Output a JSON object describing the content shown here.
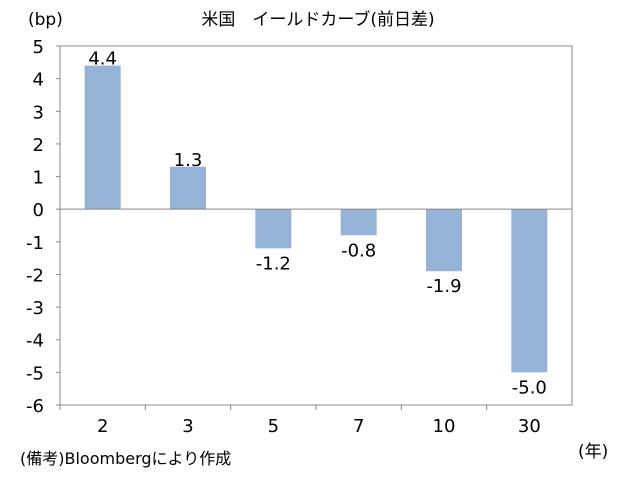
{
  "chart_data": {
    "type": "bar",
    "title": "米国　イールドカーブ(前日差)",
    "ylabel": "(bp)",
    "xlabel": "(年)",
    "categories": [
      "2",
      "3",
      "5",
      "7",
      "10",
      "30"
    ],
    "values": [
      4.4,
      1.3,
      -1.2,
      -0.8,
      -1.9,
      -5.0
    ],
    "data_labels": [
      "4.4",
      "1.3",
      "-1.2",
      "-0.8",
      "-1.9",
      "-5.0"
    ],
    "ylim": [
      -6,
      5
    ],
    "yticks": [
      5,
      4,
      3,
      2,
      1,
      0,
      -1,
      -2,
      -3,
      -4,
      -5,
      -6
    ],
    "grid": false,
    "legend": "none",
    "bar_color": "#95B3D7",
    "note": "(備考)Bloombergにより作成"
  }
}
